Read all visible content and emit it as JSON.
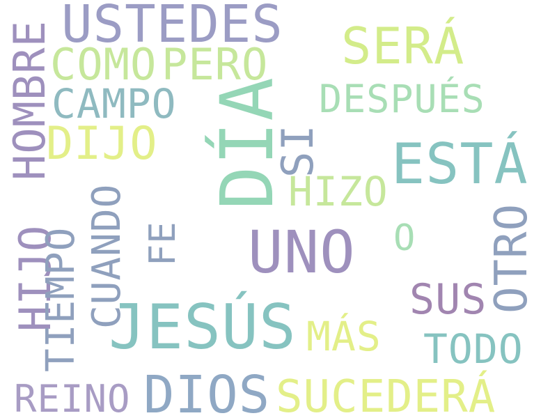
{
  "word_cloud": {
    "words": [
      {
        "id": "ustedes",
        "text": "USTEDES",
        "color": "#9b9cc4",
        "rotated": false
      },
      {
        "id": "sera",
        "text": "SERÁ",
        "color": "#d3ec8a",
        "rotated": false
      },
      {
        "id": "como",
        "text": "COMO",
        "color": "#c6e79b",
        "rotated": false
      },
      {
        "id": "pero",
        "text": "PERO",
        "color": "#c6e79b",
        "rotated": false
      },
      {
        "id": "campo",
        "text": "CAMPO",
        "color": "#8fbac0",
        "rotated": false
      },
      {
        "id": "despues",
        "text": "DESPUÉS",
        "color": "#a8deb5",
        "rotated": false
      },
      {
        "id": "dijo",
        "text": "DIJO",
        "color": "#e3ef88",
        "rotated": false
      },
      {
        "id": "esta",
        "text": "ESTÁ",
        "color": "#86c3c0",
        "rotated": false
      },
      {
        "id": "hizo",
        "text": "HIZO",
        "color": "#c6e79b",
        "rotated": false
      },
      {
        "id": "uno",
        "text": "UNO",
        "color": "#9e90bd",
        "rotated": false
      },
      {
        "id": "o",
        "text": "O",
        "color": "#a8deb5",
        "rotated": false
      },
      {
        "id": "sus",
        "text": "SUS",
        "color": "#a185b0",
        "rotated": false
      },
      {
        "id": "jesus",
        "text": "JESÚS",
        "color": "#86c3c0",
        "rotated": false
      },
      {
        "id": "mas",
        "text": "MÁS",
        "color": "#e3ef88",
        "rotated": false
      },
      {
        "id": "todo",
        "text": "TODO",
        "color": "#86c3c0",
        "rotated": false
      },
      {
        "id": "reino",
        "text": "REINO",
        "color": "#a89cc4",
        "rotated": false
      },
      {
        "id": "dios",
        "text": "DIOS",
        "color": "#8fa8c4",
        "rotated": false
      },
      {
        "id": "sucedera",
        "text": "SUCEDERÁ",
        "color": "#e3ef88",
        "rotated": false
      },
      {
        "id": "hombre",
        "text": "HOMBRE",
        "color": "#9e90bd",
        "rotated": true
      },
      {
        "id": "dia",
        "text": "DÍA",
        "color": "#94d6b6",
        "rotated": true
      },
      {
        "id": "si",
        "text": "SI",
        "color": "#8fa0bd",
        "rotated": true
      },
      {
        "id": "hijo",
        "text": "HIJO",
        "color": "#9e90bd",
        "rotated": true
      },
      {
        "id": "tiempo",
        "text": "TIEMPO",
        "color": "#8fa0bd",
        "rotated": true
      },
      {
        "id": "cuando",
        "text": "CUANDO",
        "color": "#8fa0bd",
        "rotated": true
      },
      {
        "id": "fe",
        "text": "FE",
        "color": "#8fa0bd",
        "rotated": true
      },
      {
        "id": "otro",
        "text": "OTRO",
        "color": "#8fa0bd",
        "rotated": true
      }
    ]
  }
}
